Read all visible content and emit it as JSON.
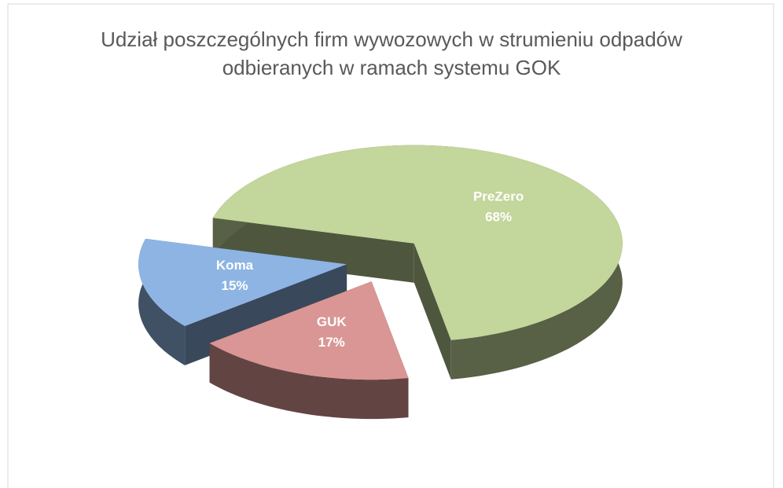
{
  "chart_data": {
    "type": "pie3d",
    "title": "Udział poszczególnych firm wywozowych w strumieniu odpadów odbieranych w ramach systemu GOK",
    "categories": [
      "PreZero",
      "GUK",
      "Koma"
    ],
    "values": [
      68,
      17,
      15
    ],
    "value_labels": [
      "68%",
      "17%",
      "15%"
    ],
    "colors": [
      "#c3d69b",
      "#d99694",
      "#8eb4e3"
    ]
  }
}
